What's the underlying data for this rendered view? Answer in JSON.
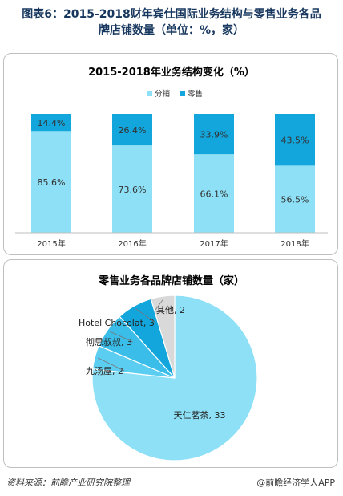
{
  "figure_title_line1": "图表6：2015-2018财年宾仕国际业务结构与零售业务各品",
  "figure_title_line2": "牌店铺数量（单位：%，家）",
  "footer": {
    "source": "资料来源：前瞻产业研究院整理",
    "brand": "@前瞻经济学人APP"
  },
  "colors": {
    "fenxiao": "#8de0f6",
    "lingshou": "#12a6dc",
    "pie_main": "#8de0f6",
    "pie_c1": "#5bcdf0",
    "pie_c2": "#3bbde9",
    "pie_c3": "#12a6dc",
    "pie_c4": "#d9d9d9",
    "text": "#333333"
  },
  "chart_data": [
    {
      "type": "bar",
      "stacked": true,
      "title": "2015-2018年业务结构变化（%）",
      "categories": [
        "2015年",
        "2016年",
        "2017年",
        "2018年"
      ],
      "series": [
        {
          "name": "分销",
          "values": [
            85.6,
            73.6,
            66.1,
            56.5
          ],
          "labels": [
            "85.6%",
            "73.6%",
            "66.1%",
            "56.5%"
          ]
        },
        {
          "name": "零售",
          "values": [
            14.4,
            26.4,
            33.9,
            43.5
          ],
          "labels": [
            "14.4%",
            "26.4%",
            "33.9%",
            "43.5%"
          ]
        }
      ],
      "ylim": [
        0,
        100
      ],
      "legend": "top-center",
      "grid": false
    },
    {
      "type": "pie",
      "title": "零售业务各品牌店铺数量（家）",
      "slices": [
        {
          "name": "天仁茗茶",
          "value": 33,
          "label": "天仁茗茶, 33"
        },
        {
          "name": "九汤屋",
          "value": 2,
          "label": "九汤屋, 2"
        },
        {
          "name": "彻思叔叔",
          "value": 3,
          "label": "彻思叔叔, 3"
        },
        {
          "name": "Hotel Chocolat",
          "value": 3,
          "label": "Hotel Chocolat, 3"
        },
        {
          "name": "其他",
          "value": 2,
          "label": "其他, 2"
        }
      ]
    }
  ]
}
